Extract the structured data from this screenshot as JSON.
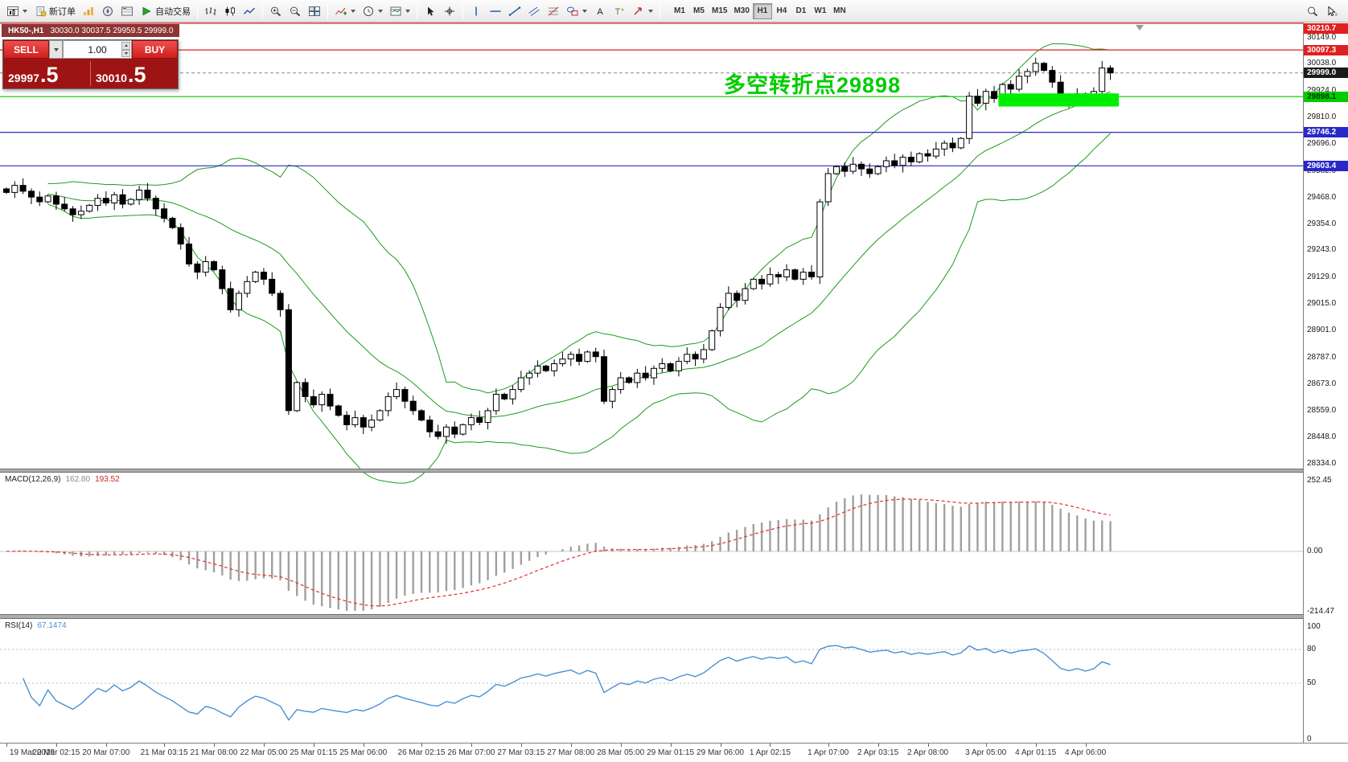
{
  "toolbar": {
    "items": [
      {
        "name": "new-chart-button",
        "icon": "chart-window",
        "caret": true
      },
      {
        "name": "new-order-button",
        "icon": "new-order",
        "label": "新订单"
      },
      {
        "name": "market-watch-button",
        "icon": "market-watch"
      },
      {
        "name": "navigator-button",
        "icon": "navigator"
      },
      {
        "name": "terminal-button",
        "icon": "terminal"
      },
      {
        "name": "autotrading-button",
        "icon": "play-green",
        "label": "自动交易"
      },
      {
        "sep": true
      },
      {
        "name": "bar-chart-button",
        "icon": "bars"
      },
      {
        "name": "candlestick-chart-button",
        "icon": "candles"
      },
      {
        "name": "line-chart-button",
        "icon": "line"
      },
      {
        "sep": true
      },
      {
        "name": "zoom-in-button",
        "icon": "zoom-in"
      },
      {
        "name": "zoom-out-button",
        "icon": "zoom-out"
      },
      {
        "name": "tile-windows-button",
        "icon": "tile"
      },
      {
        "sep": true
      },
      {
        "name": "indicators-button",
        "icon": "indicators",
        "caret": true
      },
      {
        "name": "periods-button",
        "icon": "clock",
        "caret": true
      },
      {
        "name": "templates-button",
        "icon": "template",
        "caret": true
      },
      {
        "sep": true
      },
      {
        "name": "cursor-button",
        "icon": "cursor"
      },
      {
        "name": "crosshair-button",
        "icon": "crosshair"
      },
      {
        "sep": true
      },
      {
        "name": "vertical-line-button",
        "icon": "vline"
      },
      {
        "name": "horizontal-line-button",
        "icon": "hline"
      },
      {
        "name": "trendline-button",
        "icon": "trendline"
      },
      {
        "name": "channel-button",
        "icon": "channel"
      },
      {
        "name": "fibonacci-button",
        "icon": "fibo"
      },
      {
        "name": "shapes-button",
        "icon": "shapes",
        "caret": true
      },
      {
        "name": "text-button",
        "icon": "text"
      },
      {
        "name": "label-button",
        "icon": "label"
      },
      {
        "name": "arrows-button",
        "icon": "arrows",
        "caret": true
      },
      {
        "sep": true
      }
    ],
    "timeframes": [
      "M1",
      "M5",
      "M15",
      "M30",
      "H1",
      "H4",
      "D1",
      "W1",
      "MN"
    ],
    "active_timeframe": "H1",
    "right_items": [
      {
        "name": "search-button",
        "icon": "search"
      },
      {
        "name": "pointer-tool-button",
        "icon": "pointer"
      }
    ]
  },
  "chart_header": {
    "title": "HK50-,H1",
    "ohlc": "30030.0 30037.5 29959.5 29999.0"
  },
  "order_panel": {
    "sell_label": "SELL",
    "buy_label": "BUY",
    "volume": "1.00",
    "sell_price_main": "29997",
    "sell_price_pips": ".5",
    "buy_price_main": "30010",
    "buy_price_pips": ".5"
  },
  "annotation": {
    "text": "多空转折点29898",
    "color": "#00cc00"
  },
  "price_axis": {
    "labels": [
      "30149.0",
      "30038.0",
      "29924.0",
      "29810.0",
      "29696.0",
      "29582.0",
      "29468.0",
      "29354.0",
      "29243.0",
      "29129.0",
      "29015.0",
      "28901.0",
      "28787.0",
      "28673.0",
      "28559.0",
      "28448.0",
      "28334.0"
    ],
    "badges": [
      {
        "text": "30210.7",
        "price": 30210.7,
        "bg": "#e02020",
        "fg": "#ffffff"
      },
      {
        "text": "30097.3",
        "price": 30097.3,
        "bg": "#e02020",
        "fg": "#ffffff"
      },
      {
        "text": "29999.0",
        "price": 29999.0,
        "bg": "#1a1a1a",
        "fg": "#ffffff"
      },
      {
        "text": "29898.1",
        "price": 29898.1,
        "bg": "#00cc00",
        "fg": "#003300"
      },
      {
        "text": "29746.2",
        "price": 29746.2,
        "bg": "#2828c8",
        "fg": "#ffffff"
      },
      {
        "text": "29603.4",
        "price": 29603.4,
        "bg": "#2828c8",
        "fg": "#ffffff"
      }
    ]
  },
  "hlines": [
    {
      "price": 30210.7,
      "color": "#e02020"
    },
    {
      "price": 30097.3,
      "color": "#e02020"
    },
    {
      "price": 29898.1,
      "color": "#00cc00"
    },
    {
      "price": 29746.2,
      "color": "#2828c8"
    },
    {
      "price": 29603.4,
      "color": "#2828c8"
    }
  ],
  "bid_line": {
    "price": 29999.0,
    "color": "#888888"
  },
  "highlight_rect": {
    "bar_start": 120,
    "bar_end": 134.5,
    "price_top": 29912,
    "price_bottom": 29856,
    "color": "#00ee00"
  },
  "indicators": {
    "macd": {
      "label": "MACD(12,26,9)",
      "value_main": "162.80",
      "value_signal": "193.52",
      "axis": [
        "252.45",
        "0.00",
        "-214.47"
      ]
    },
    "rsi": {
      "label": "RSI(14)",
      "value": "67.1474",
      "axis": [
        "100",
        "80",
        "50",
        "0"
      ],
      "levels": [
        80,
        50
      ]
    }
  },
  "chart_data": {
    "type": "candlestick",
    "symbol": "HK50-",
    "timeframe": "H1",
    "current_ohlc": {
      "open": 30030.0,
      "high": 30037.5,
      "low": 29959.5,
      "close": 29999.0
    },
    "ylim": [
      28313,
      30214
    ],
    "closes": [
      29490,
      29520,
      29495,
      29470,
      29450,
      29475,
      29440,
      29420,
      29395,
      29410,
      29435,
      29465,
      29445,
      29480,
      29440,
      29460,
      29500,
      29465,
      29420,
      29380,
      29340,
      29270,
      29185,
      29150,
      29195,
      29160,
      29080,
      28990,
      29060,
      29110,
      29150,
      29120,
      29060,
      28990,
      28560,
      28680,
      28620,
      28585,
      28630,
      28580,
      28540,
      28500,
      28530,
      28490,
      28520,
      28560,
      28620,
      28650,
      28600,
      28560,
      28520,
      28470,
      28450,
      28490,
      28460,
      28500,
      28530,
      28510,
      28560,
      28630,
      28610,
      28650,
      28700,
      28720,
      28750,
      28730,
      28760,
      28780,
      28800,
      28770,
      28810,
      28790,
      28600,
      28650,
      28700,
      28680,
      28720,
      28700,
      28740,
      28760,
      28730,
      28770,
      28800,
      28780,
      28820,
      28900,
      29000,
      29060,
      29030,
      29080,
      29120,
      29100,
      29140,
      29130,
      29160,
      29120,
      29150,
      29130,
      29450,
      29570,
      29600,
      29580,
      29610,
      29590,
      29570,
      29600,
      29625,
      29605,
      29640,
      29620,
      29655,
      29645,
      29675,
      29700,
      29680,
      29720,
      29900,
      29870,
      29920,
      29890,
      29950,
      29930,
      29985,
      30005,
      30040,
      30010,
      29960,
      29900,
      29880,
      29910,
      29890,
      29920,
      30020,
      29999
    ],
    "time_labels": [
      "19 Mar 2019",
      "20 Mar 02:15",
      "20 Mar 07:00",
      "21 Mar 03:15",
      "21 Mar 08:00",
      "22 Mar 05:00",
      "25 Mar 01:15",
      "25 Mar 06:00",
      "26 Mar 02:15",
      "26 Mar 07:00",
      "27 Mar 03:15",
      "27 Mar 08:00",
      "28 Mar 05:00",
      "29 Mar 01:15",
      "29 Mar 06:00",
      "1 Apr 02:15",
      "1 Apr 07:00",
      "2 Apr 03:15",
      "2 Apr 08:00",
      "3 Apr 05:00",
      "4 Apr 01:15",
      "4 Apr 06:00"
    ],
    "time_label_bars": [
      0,
      6,
      12,
      19,
      25,
      31,
      37,
      43,
      50,
      56,
      62,
      68,
      74,
      80,
      86,
      92,
      99,
      105,
      111,
      118,
      124,
      130
    ]
  }
}
